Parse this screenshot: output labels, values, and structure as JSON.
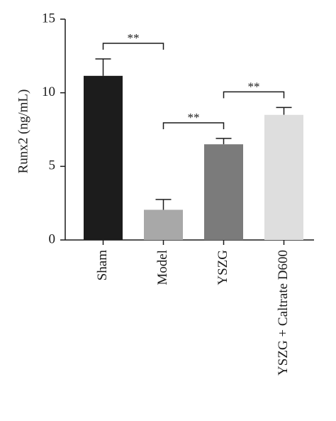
{
  "chart_data": {
    "type": "bar",
    "y_label": "Runx2 (ng/mL)",
    "categories": [
      "Sham",
      "Model",
      "YSZG",
      "YSZG + Caltrate D600"
    ],
    "values": [
      11.15,
      2.05,
      6.5,
      8.5
    ],
    "errors": [
      1.15,
      0.7,
      0.4,
      0.5
    ],
    "colors": [
      "#1c1c1c",
      "#a8a8a8",
      "#7b7b7b",
      "#dedede"
    ],
    "ylim": [
      0,
      15
    ],
    "yticks": [
      0,
      5,
      10,
      15
    ],
    "comparisons": [
      {
        "from": 0,
        "to": 1,
        "label": "**"
      },
      {
        "from": 1,
        "to": 2,
        "label": "**"
      },
      {
        "from": 2,
        "to": 3,
        "label": "**"
      }
    ]
  }
}
